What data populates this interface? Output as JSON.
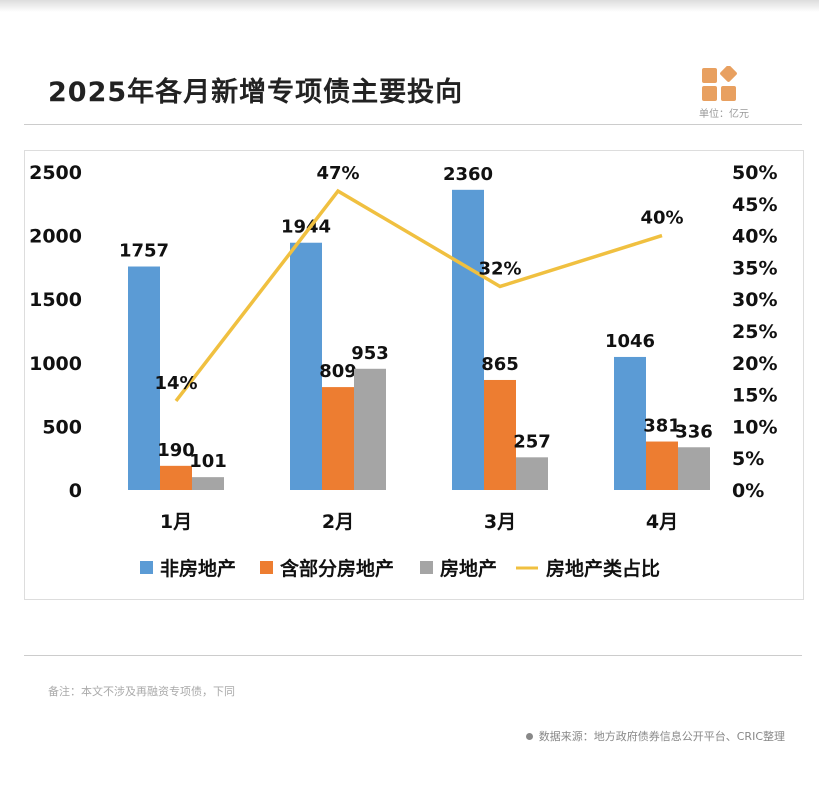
{
  "header": {
    "title": "2025年各月新增专项债主要投向",
    "unit": "单位：亿元"
  },
  "footer": {
    "note": "备注：本文不涉及再融资专项债，下同",
    "source": "数据来源：地方政府债券信息公开平台、CRIC整理"
  },
  "colors": {
    "blue": "#5b9bd5",
    "orange": "#ed7d31",
    "gray": "#a5a5a5",
    "line": "#f0c040",
    "logo": "#e8a060"
  },
  "chart_data": {
    "type": "bar+line",
    "categories": [
      "1月",
      "2月",
      "3月",
      "4月"
    ],
    "series": [
      {
        "name": "非房地产",
        "type": "bar",
        "axis": "left",
        "color": "#5b9bd5",
        "values": [
          1757,
          1944,
          2360,
          1046
        ]
      },
      {
        "name": "含部分房地产",
        "type": "bar",
        "axis": "left",
        "color": "#ed7d31",
        "values": [
          190,
          809,
          865,
          381
        ]
      },
      {
        "name": "房地产",
        "type": "bar",
        "axis": "left",
        "color": "#a5a5a5",
        "values": [
          101,
          953,
          257,
          336
        ]
      },
      {
        "name": "房地产类占比",
        "type": "line",
        "axis": "right",
        "color": "#f0c040",
        "values": [
          14,
          47,
          32,
          40
        ],
        "labels": [
          "14%",
          "47%",
          "32%",
          "40%"
        ]
      }
    ],
    "left_axis": {
      "ylim": [
        0,
        2500
      ],
      "ticks": [
        "0",
        "500",
        "1000",
        "1500",
        "2000",
        "2500"
      ]
    },
    "right_axis": {
      "ylim": [
        0,
        50
      ],
      "ticks": [
        "0%",
        "5%",
        "10%",
        "15%",
        "20%",
        "25%",
        "30%",
        "35%",
        "40%",
        "45%",
        "50%"
      ]
    },
    "legend": "bottom",
    "grid": false
  }
}
